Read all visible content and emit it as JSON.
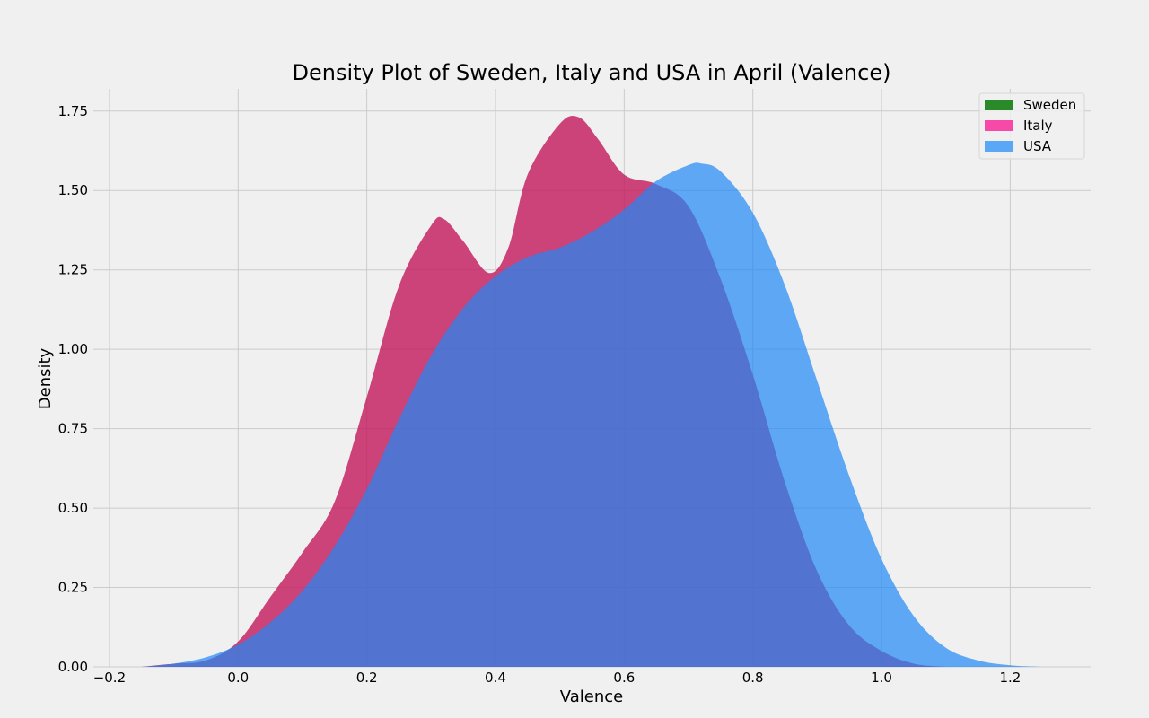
{
  "chart_data": {
    "type": "area",
    "title": "Density Plot of Sweden, Italy and USA in April (Valence)",
    "xlabel": "Valence",
    "ylabel": "Density",
    "xlim": [
      -0.225,
      1.325
    ],
    "ylim": [
      0,
      1.82
    ],
    "xticks": [
      -0.2,
      0.0,
      0.2,
      0.4,
      0.6,
      0.8,
      1.0,
      1.2
    ],
    "xtick_labels": [
      "−0.2",
      "0.0",
      "0.2",
      "0.4",
      "0.6",
      "0.8",
      "1.0",
      "1.2"
    ],
    "yticks": [
      0.0,
      0.25,
      0.5,
      0.75,
      1.0,
      1.25,
      1.5,
      1.75
    ],
    "ytick_labels": [
      "0.00",
      "0.25",
      "0.50",
      "0.75",
      "1.00",
      "1.25",
      "1.50",
      "1.75"
    ],
    "grid": true,
    "legend_position": "top-right",
    "series": [
      {
        "name": "Sweden",
        "color": "#2a8a2a",
        "opacity": 0.85,
        "x": [],
        "y": []
      },
      {
        "name": "Italy",
        "color": "#c2185b",
        "legend_color": "#f74aa8",
        "opacity": 0.8,
        "x": [
          -0.15,
          -0.1,
          -0.05,
          0.0,
          0.05,
          0.1,
          0.15,
          0.2,
          0.25,
          0.3,
          0.32,
          0.35,
          0.39,
          0.42,
          0.45,
          0.5,
          0.53,
          0.56,
          0.6,
          0.65,
          0.7,
          0.75,
          0.8,
          0.85,
          0.9,
          0.95,
          1.0,
          1.05,
          1.1
        ],
        "y": [
          0.0,
          0.01,
          0.02,
          0.08,
          0.22,
          0.36,
          0.52,
          0.85,
          1.2,
          1.39,
          1.41,
          1.34,
          1.24,
          1.32,
          1.55,
          1.71,
          1.73,
          1.66,
          1.55,
          1.52,
          1.45,
          1.22,
          0.92,
          0.58,
          0.3,
          0.13,
          0.05,
          0.01,
          0.0
        ]
      },
      {
        "name": "USA",
        "color": "#1e88f5",
        "legend_color": "#5aa8f5",
        "opacity": 0.7,
        "x": [
          -0.15,
          -0.1,
          -0.05,
          0.0,
          0.05,
          0.1,
          0.15,
          0.2,
          0.25,
          0.3,
          0.35,
          0.4,
          0.45,
          0.5,
          0.55,
          0.6,
          0.65,
          0.7,
          0.72,
          0.75,
          0.8,
          0.85,
          0.9,
          0.95,
          1.0,
          1.05,
          1.1,
          1.15,
          1.2,
          1.25
        ],
        "y": [
          0.0,
          0.01,
          0.03,
          0.07,
          0.14,
          0.24,
          0.38,
          0.56,
          0.78,
          0.98,
          1.13,
          1.23,
          1.29,
          1.32,
          1.37,
          1.44,
          1.53,
          1.58,
          1.585,
          1.56,
          1.43,
          1.2,
          0.9,
          0.6,
          0.34,
          0.16,
          0.06,
          0.02,
          0.005,
          0.0
        ]
      }
    ]
  }
}
